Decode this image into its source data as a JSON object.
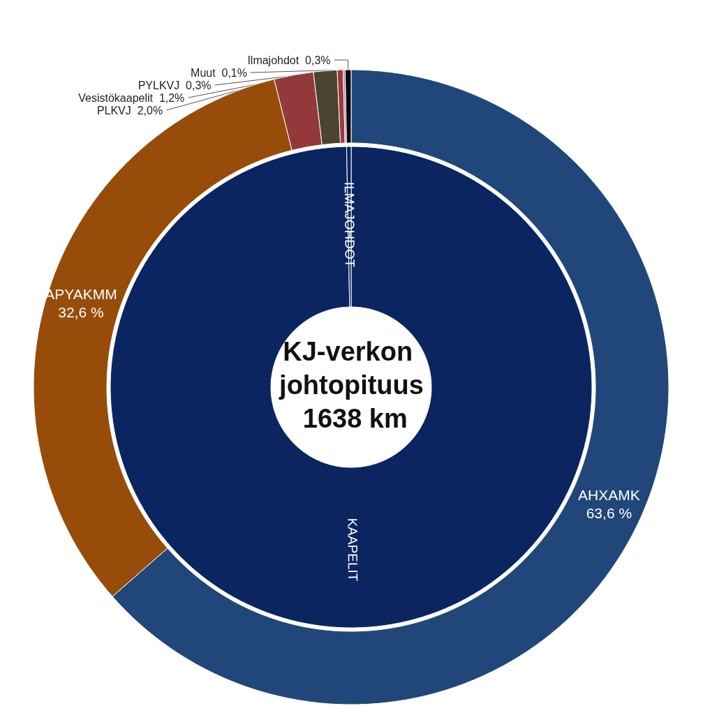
{
  "chart_data": [
    {
      "type": "donut",
      "title": "KJ-verkon johtopituus 1638 km",
      "categories": [
        "KAAPELIT",
        "ILMAJOHDOT"
      ],
      "values": [
        99.7,
        0.3
      ],
      "colors": [
        "#0b2560",
        "#0b2560"
      ]
    },
    {
      "type": "donut",
      "categories": [
        "AHXAMK",
        "APYAKMM",
        "PLKVJ",
        "Vesistökaapelit",
        "PYLKVJ",
        "Muut",
        "Ilmajohdot"
      ],
      "values": [
        63.6,
        32.6,
        2.0,
        1.2,
        0.3,
        0.1,
        0.3
      ],
      "colors": [
        "#21477a",
        "#974c09",
        "#94393b",
        "#4a4530",
        "#a03838",
        "#9a85c0",
        "#0a0a0a"
      ],
      "value_labels": [
        "63,6 %",
        "32,6 %",
        "2,0%",
        "1,2%",
        "0,3%",
        "0,1%",
        "0,3%"
      ]
    }
  ]
}
